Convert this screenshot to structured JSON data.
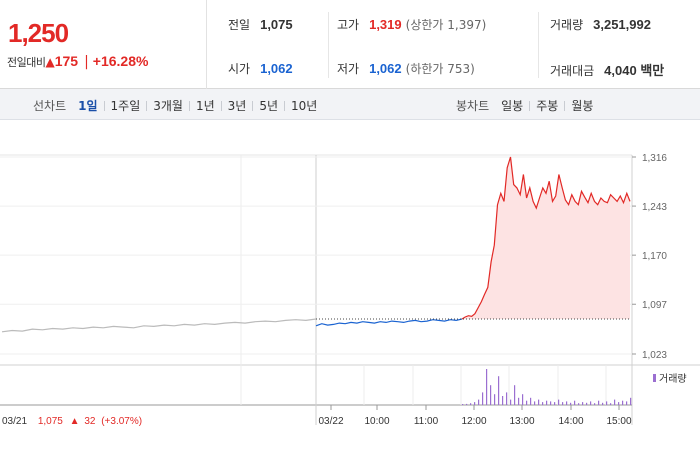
{
  "summary": {
    "current_price": "1,250",
    "change_label": "전일대비",
    "change_arrow": "▲",
    "change_value": "175",
    "change_rate": "+16.28%"
  },
  "stats": {
    "prev_close_label": "전일",
    "prev_close": "1,075",
    "high_label": "고가",
    "high": "1,319",
    "upper_limit": "(상한가 1,397)",
    "volume_label": "거래량",
    "volume": "3,251,992",
    "open_label": "시가",
    "open": "1,062",
    "low_label": "저가",
    "low": "1,062",
    "lower_limit": "(하한가 753)",
    "amount_label": "거래대금",
    "amount": "4,040 백만"
  },
  "line_tabs": {
    "label": "선차트",
    "items": [
      {
        "label": "1일",
        "active": true
      },
      {
        "label": "1주일",
        "active": false
      },
      {
        "label": "3개월",
        "active": false
      },
      {
        "label": "1년",
        "active": false
      },
      {
        "label": "3년",
        "active": false
      },
      {
        "label": "5년",
        "active": false
      },
      {
        "label": "10년",
        "active": false
      }
    ]
  },
  "candle_tabs": {
    "label": "봉차트",
    "items": [
      {
        "label": "일봉"
      },
      {
        "label": "주봉"
      },
      {
        "label": "월봉"
      }
    ]
  },
  "chart_data": {
    "type": "line",
    "y_ticks": [
      "1,316",
      "1,243",
      "1,170",
      "1,097",
      "1,023"
    ],
    "ylim": [
      1023,
      1316
    ],
    "x_ticks": [
      "03/21",
      "03/22",
      "10:00",
      "11:00",
      "12:00",
      "13:00",
      "14:00",
      "15:00"
    ],
    "reference_price": 1075,
    "prev_day_summary": {
      "date": "03/21",
      "close": "1,075",
      "arrow": "▲",
      "change": "32",
      "rate": "(+3.07%)"
    },
    "volume_legend": "거래량",
    "series": [
      {
        "segment": "prev_day",
        "color": "#bbbbbb",
        "values": [
          1056,
          1058,
          1057,
          1060,
          1059,
          1061,
          1060,
          1062,
          1061,
          1063,
          1062,
          1064,
          1063,
          1062,
          1065,
          1064,
          1066,
          1065,
          1067,
          1066,
          1068,
          1067,
          1069,
          1070,
          1069,
          1071,
          1072,
          1071,
          1073,
          1074,
          1073,
          1075
        ]
      },
      {
        "segment": "today_below_ref",
        "color": "#1a63d1",
        "values": [
          1065,
          1068,
          1066,
          1067,
          1069,
          1068,
          1070,
          1069,
          1071,
          1070,
          1069,
          1071,
          1070,
          1072,
          1071,
          1070,
          1072,
          1073,
          1071,
          1072,
          1074,
          1073,
          1072,
          1074,
          1073,
          1075
        ]
      },
      {
        "segment": "today_above_ref",
        "color": "#e22926",
        "values": [
          1075,
          1078,
          1080,
          1079,
          1083,
          1092,
          1101,
          1112,
          1122,
          1160,
          1185,
          1245,
          1262,
          1250,
          1300,
          1316,
          1275,
          1270,
          1260,
          1290,
          1255,
          1270,
          1250,
          1240,
          1255,
          1270,
          1262,
          1280,
          1250,
          1258,
          1290,
          1270,
          1252,
          1245,
          1260,
          1250,
          1245,
          1265,
          1256,
          1248,
          1262,
          1250,
          1245,
          1255,
          1250,
          1248,
          1260,
          1255,
          1250,
          1258,
          1248,
          1262,
          1250
        ]
      }
    ],
    "volume": [
      0,
      0,
      0,
      0,
      0,
      0,
      0,
      0,
      0,
      0,
      0,
      0,
      0,
      0,
      0,
      0,
      0,
      0,
      0,
      0,
      0,
      0,
      0,
      0,
      0,
      0,
      0,
      0,
      0,
      0,
      0,
      0,
      0,
      0,
      0,
      0,
      0,
      0,
      0,
      0,
      0,
      0,
      0,
      0,
      0,
      0,
      0,
      0,
      0,
      0,
      0,
      0,
      0,
      0,
      0,
      0,
      0,
      0,
      0,
      0,
      0,
      0.02,
      0.03,
      0.05,
      0.08,
      0.15,
      0.35,
      1.0,
      0.55,
      0.3,
      0.8,
      0.25,
      0.35,
      0.15,
      0.55,
      0.2,
      0.3,
      0.12,
      0.2,
      0.1,
      0.15,
      0.08,
      0.12,
      0.1,
      0.08,
      0.15,
      0.08,
      0.1,
      0.06,
      0.12,
      0.05,
      0.08,
      0.06,
      0.1,
      0.05,
      0.12,
      0.06,
      0.1,
      0.05,
      0.15,
      0.08,
      0.12,
      0.1,
      0.2
    ]
  }
}
